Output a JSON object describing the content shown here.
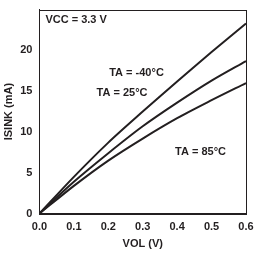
{
  "chart_data": {
    "type": "line",
    "x_label": "VOL (V)",
    "y_label": "ISINK (mA)",
    "annotations": [
      "VCC = 3.3 V"
    ],
    "x": [
      0.0,
      0.1,
      0.2,
      0.3,
      0.4,
      0.5,
      0.6
    ],
    "series": [
      {
        "name": "TA = -40°C",
        "color": "#231f20",
        "values": [
          0,
          4.5,
          8.7,
          12.5,
          16.2,
          19.8,
          23.3
        ]
      },
      {
        "name": "TA = 25°C",
        "color": "#231f20",
        "values": [
          0,
          3.9,
          7.4,
          10.7,
          13.6,
          16.3,
          18.7
        ]
      },
      {
        "name": "TA = 85°C",
        "color": "#231f20",
        "values": [
          0,
          3.4,
          6.5,
          9.2,
          11.7,
          13.9,
          16.0
        ]
      }
    ],
    "xlim": [
      0,
      0.6
    ],
    "xticks": [
      {
        "value": 0,
        "label": "0.0"
      },
      0.1,
      0.2,
      0.3,
      0.4,
      0.5,
      0.6
    ],
    "ylim": [
      0,
      25
    ],
    "yticks": [
      0,
      5,
      10,
      15,
      20
    ],
    "grid": false
  }
}
